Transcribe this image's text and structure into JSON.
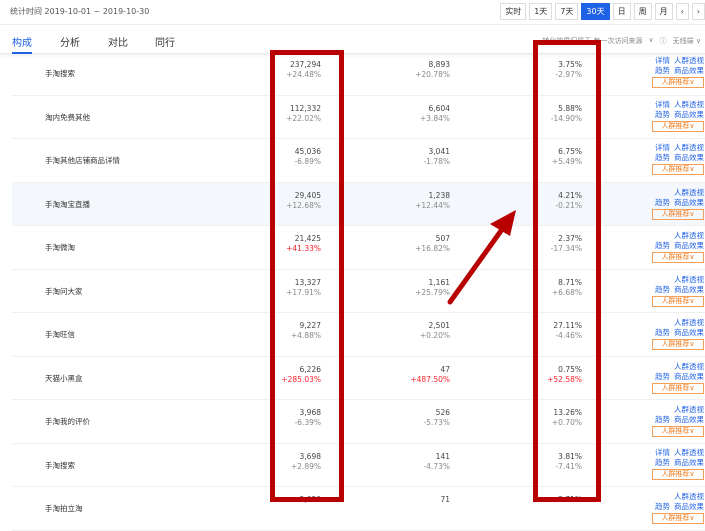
{
  "header": {
    "period_label": "统计时间 2019-10-01 ~ 2019-10-30",
    "buttons": [
      "实时",
      "1天",
      "7天",
      "30天",
      "日",
      "周",
      "月",
      "‹",
      "›"
    ],
    "active": "30天"
  },
  "tabs": [
    {
      "label": "构成",
      "active": true
    },
    {
      "label": "分析"
    },
    {
      "label": "对比"
    },
    {
      "label": "同行"
    }
  ],
  "options": {
    "attribution": "转化效果归属于 每一次访问来源",
    "attribution_caret": "∨",
    "info": "ⓘ",
    "device": "无线端 ∨"
  },
  "actions": {
    "detail": "详情",
    "crowd": "人群透视",
    "trend": "趋势",
    "effect": "商品效果",
    "recommend": "人群推荐∨"
  },
  "rows": [
    {
      "name": "手淘搜索",
      "c1": "237,294",
      "c1d": "+24.48%",
      "c2": "8,893",
      "c2d": "+20.78%",
      "c3": "3.75%",
      "c3d": "-2.97%",
      "detail": true
    },
    {
      "name": "淘内免费其他",
      "c1": "112,332",
      "c1d": "+22.02%",
      "c2": "6,604",
      "c2d": "+3.84%",
      "c3": "5.88%",
      "c3d": "-14.90%",
      "detail": true
    },
    {
      "name": "手淘其他店铺商品详情",
      "c1": "45,036",
      "c1d": "-6.89%",
      "c2": "3,041",
      "c2d": "-1.78%",
      "c3": "6.75%",
      "c3d": "+5.49%",
      "detail": true
    },
    {
      "name": "手淘淘宝直播",
      "c1": "29,405",
      "c1d": "+12.68%",
      "c2": "1,238",
      "c2d": "+12.44%",
      "c3": "4.21%",
      "c3d": "-0.21%",
      "highlight": true
    },
    {
      "name": "手淘微淘",
      "c1": "21,425",
      "c1d": "+41.33%",
      "c1red": true,
      "c2": "507",
      "c2d": "+16.82%",
      "c3": "2.37%",
      "c3d": "-17.34%"
    },
    {
      "name": "手淘问大家",
      "c1": "13,327",
      "c1d": "+17.91%",
      "c2": "1,161",
      "c2d": "+25.79%",
      "c3": "8.71%",
      "c3d": "+6.68%"
    },
    {
      "name": "手淘旺信",
      "c1": "9,227",
      "c1d": "+4.88%",
      "c2": "2,501",
      "c2d": "+0.20%",
      "c3": "27.11%",
      "c3d": "-4.46%"
    },
    {
      "name": "天猫小黑盒",
      "c1": "6,226",
      "c1d": "+285.03%",
      "c1red": true,
      "c2": "47",
      "c2d": "+487.50%",
      "c2red": true,
      "c3": "0.75%",
      "c3d": "+52.58%",
      "c3red": true
    },
    {
      "name": "手淘我的评价",
      "c1": "3,968",
      "c1d": "-6.39%",
      "c2": "526",
      "c2d": "-5.73%",
      "c3": "13.26%",
      "c3d": "+0.70%"
    },
    {
      "name": "手淘搜索",
      "c1": "3,698",
      "c1d": "+2.89%",
      "c2": "141",
      "c2d": "-4.73%",
      "c3": "3.81%",
      "c3d": "-7.41%",
      "detail": true
    },
    {
      "name": "手淘拍立淘",
      "c1": "2,620",
      "c1d": "",
      "c2": "71",
      "c2d": "",
      "c3": "2.71%",
      "c3d": ""
    }
  ],
  "annotation_color": "#b80000"
}
